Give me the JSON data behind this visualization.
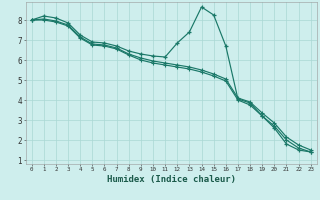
{
  "xlabel": "Humidex (Indice chaleur)",
  "bg_color": "#ceeeed",
  "grid_color": "#aad8d4",
  "line_color": "#1a7868",
  "xlim": [
    -0.5,
    23.5
  ],
  "ylim": [
    0.8,
    8.9
  ],
  "xticks": [
    0,
    1,
    2,
    3,
    4,
    5,
    6,
    7,
    8,
    9,
    10,
    11,
    12,
    13,
    14,
    15,
    16,
    17,
    18,
    19,
    20,
    21,
    22,
    23
  ],
  "yticks": [
    1,
    2,
    3,
    4,
    5,
    6,
    7,
    8
  ],
  "line1_x": [
    0,
    1,
    2,
    3,
    4,
    5,
    6,
    7,
    8,
    9,
    10,
    11,
    12,
    13,
    14,
    15,
    16,
    17,
    18,
    19,
    20,
    21,
    22,
    23
  ],
  "line1_y": [
    8.0,
    8.2,
    8.1,
    7.85,
    7.25,
    6.9,
    6.85,
    6.7,
    6.45,
    6.3,
    6.2,
    6.15,
    6.85,
    7.4,
    8.65,
    8.25,
    6.7,
    4.05,
    3.85,
    3.2,
    2.6,
    1.8,
    1.5,
    1.4
  ],
  "line2_x": [
    0,
    1,
    2,
    3,
    4,
    5,
    6,
    7,
    8,
    9,
    10,
    11,
    12,
    13,
    14,
    15,
    16,
    17,
    18,
    19,
    20,
    21,
    22,
    23
  ],
  "line2_y": [
    8.0,
    8.05,
    7.95,
    7.75,
    7.15,
    6.8,
    6.75,
    6.6,
    6.3,
    6.1,
    5.95,
    5.85,
    5.75,
    5.65,
    5.5,
    5.3,
    5.05,
    4.1,
    3.9,
    3.35,
    2.85,
    2.15,
    1.75,
    1.5
  ],
  "line3_x": [
    0,
    1,
    2,
    3,
    4,
    5,
    6,
    7,
    8,
    9,
    10,
    11,
    12,
    13,
    14,
    15,
    16,
    17,
    18,
    19,
    20,
    21,
    22,
    23
  ],
  "line3_y": [
    8.0,
    8.0,
    7.9,
    7.7,
    7.1,
    6.75,
    6.7,
    6.55,
    6.25,
    6.0,
    5.85,
    5.75,
    5.65,
    5.55,
    5.4,
    5.2,
    4.95,
    4.0,
    3.75,
    3.2,
    2.7,
    2.0,
    1.6,
    1.4
  ],
  "xlabel_fontsize": 6.5,
  "tick_fontsize_x": 4.2,
  "tick_fontsize_y": 5.5
}
